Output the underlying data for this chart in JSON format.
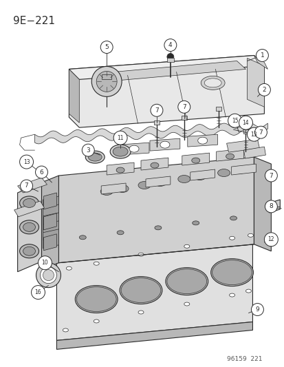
{
  "title": "9E−221",
  "footer": "96159  221",
  "bg_color": "#ffffff",
  "line_color": "#2a2a2a",
  "fig_width": 4.14,
  "fig_height": 5.33,
  "dpi": 100,
  "title_fontsize": 11,
  "footer_fontsize": 6.5,
  "label_fontsize": 6.5,
  "label_fontsize_2digit": 5.5,
  "circle_r": 0.013,
  "lw_main": 0.8,
  "lw_thin": 0.5,
  "lw_heavy": 1.0,
  "fill_light": "#e8e8e8",
  "fill_mid": "#d0d0d0",
  "fill_dark": "#b8b8b8",
  "fill_darker": "#a0a0a0"
}
